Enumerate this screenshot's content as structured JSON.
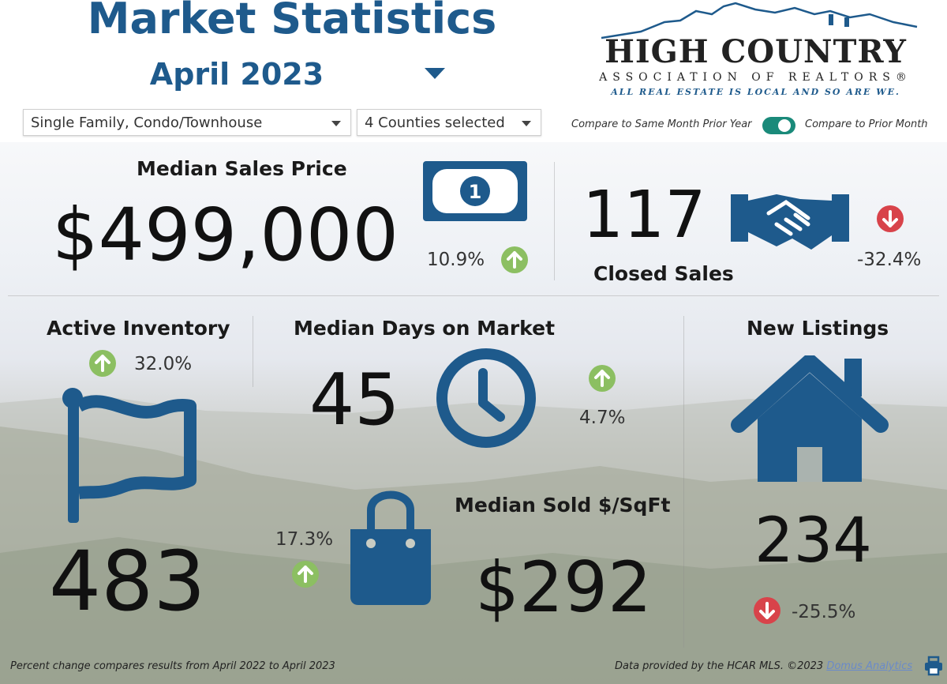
{
  "header": {
    "title": "Market Statistics",
    "month": "April 2023"
  },
  "logo": {
    "name": "HIGH COUNTRY",
    "subtitle": "ASSOCIATION OF REALTORS®",
    "tagline": "ALL REAL ESTATE IS LOCAL AND SO ARE WE."
  },
  "filters": {
    "property_type": "Single Family, Condo/Townhouse",
    "counties": "4 Counties selected",
    "toggle_left": "Compare to Same Month Prior Year",
    "toggle_right": "Compare to Prior Month"
  },
  "metrics": {
    "median_sales_price": {
      "label": "Median Sales Price",
      "value": "$499,000",
      "change": "10.9%",
      "direction": "up",
      "icon": "money-bill-icon"
    },
    "closed_sales": {
      "label": "Closed Sales",
      "value": "117",
      "change": "-32.4%",
      "direction": "down",
      "icon": "handshake-icon"
    },
    "active_inventory": {
      "label": "Active Inventory",
      "value": "483",
      "change": "32.0%",
      "direction": "up",
      "icon": "flag-icon"
    },
    "median_days_on_market": {
      "label": "Median Days on Market",
      "value": "45",
      "change": "4.7%",
      "direction": "up",
      "icon": "clock-icon"
    },
    "new_listings": {
      "label": "New Listings",
      "value": "234",
      "change": "-25.5%",
      "direction": "down",
      "icon": "house-icon"
    },
    "median_sold_per_sqft": {
      "label": "Median Sold $/SqFt",
      "value": "$292",
      "change": "17.3%",
      "direction": "up",
      "icon": "shopping-bag-icon"
    }
  },
  "footer": {
    "note": "Percent change compares results from April 2022 to April 2023",
    "source": "Data provided by the HCAR MLS. ©2023 ",
    "link": "Domus Analytics"
  },
  "colors": {
    "brand_blue": "#1e5a8c",
    "up_green": "#8cbf62",
    "down_red": "#d8434a",
    "toggle_teal": "#1a8a7a"
  }
}
